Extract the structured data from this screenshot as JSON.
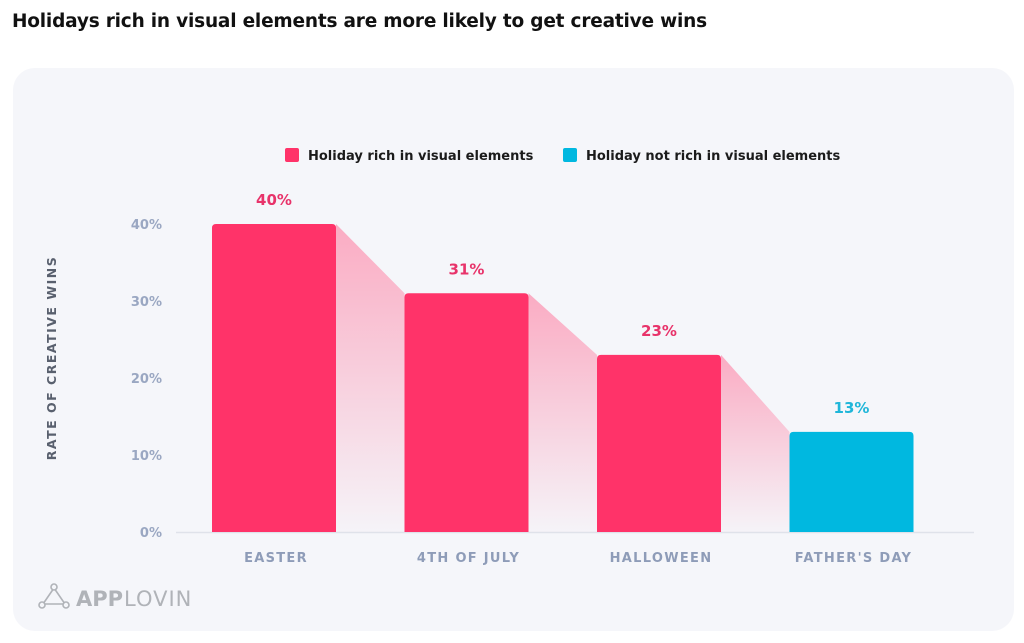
{
  "page": {
    "title": "Holidays rich in visual elements are more likely to get creative wins"
  },
  "logo": {
    "part1": "APP",
    "part2": "LOVIN"
  },
  "colors": {
    "rich": "#ff3369",
    "not_rich": "#00b8e0",
    "connector": "#ff7ea0",
    "tick": "#9aa7c2",
    "card": "#f5f6fa"
  },
  "chart_data": {
    "type": "bar",
    "title": "Holidays rich in visual elements are more likely to get creative wins",
    "xlabel": "",
    "ylabel": "RATE OF CREATIVE WINS",
    "ylim": [
      0,
      40
    ],
    "yticks": [
      0,
      10,
      20,
      30,
      40
    ],
    "ytick_labels": [
      "0%",
      "10%",
      "20%",
      "30%",
      "40%"
    ],
    "grid": false,
    "legend_position": "top-center",
    "legend": [
      {
        "label": "Holiday rich in visual elements",
        "color_key": "rich"
      },
      {
        "label": "Holiday not rich in visual elements",
        "color_key": "not_rich"
      }
    ],
    "categories": [
      "EASTER",
      "4TH OF JULY",
      "HALLOWEEN",
      "FATHER'S DAY"
    ],
    "values": [
      40,
      31,
      23,
      13
    ],
    "value_labels": [
      "40%",
      "31%",
      "23%",
      "13%"
    ],
    "groups": [
      "rich",
      "rich",
      "rich",
      "not_rich"
    ]
  }
}
